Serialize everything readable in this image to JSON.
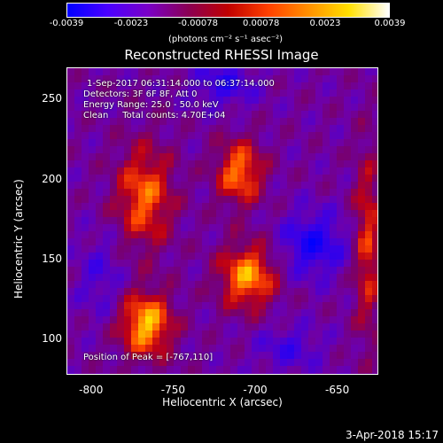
{
  "colorbar": {
    "ticks": [
      "-0.0039",
      "-0.0023",
      "-0.00078",
      "0.00078",
      "0.0023",
      "0.0039"
    ],
    "units": "(photons cm⁻² s⁻¹ asec⁻²)",
    "colors": [
      "#0000ff",
      "#4a00ff",
      "#7a00c8",
      "#8a0055",
      "#c00000",
      "#ff4000",
      "#ff9000",
      "#ffe000",
      "#ffffff"
    ]
  },
  "title": "Reconstructed RHESSI Image",
  "info": {
    "time": "1-Sep-2017 06:31:14.000 to 06:37:14.000",
    "detectors": "Detectors: 3F 6F 8F, Att 0",
    "energy": "Energy Range: 25.0 - 50.0 keV",
    "clean": "Clean     Total counts: 4.70E+04",
    "peak": "Position of Peak = [-767,110]"
  },
  "axes": {
    "xlabel": "Heliocentric X (arcsec)",
    "ylabel": "Heliocentric Y (arcsec)",
    "xticks": [
      "-800",
      "-750",
      "-700",
      "-650"
    ],
    "yticks": [
      "250",
      "200",
      "150",
      "100"
    ],
    "xlim": [
      -815,
      -625
    ],
    "ylim": [
      78,
      270
    ]
  },
  "image": {
    "sources": [
      {
        "x": -767,
        "y": 110,
        "amp": 1.0,
        "sx": 11,
        "sy": 14
      },
      {
        "x": -768,
        "y": 190,
        "amp": 0.75,
        "sx": 12,
        "sy": 22
      },
      {
        "x": -710,
        "y": 205,
        "amp": 0.8,
        "sx": 10,
        "sy": 14
      },
      {
        "x": -705,
        "y": 140,
        "amp": 0.9,
        "sx": 12,
        "sy": 14
      },
      {
        "x": -632,
        "y": 160,
        "amp": 0.6,
        "sx": 6,
        "sy": 40
      }
    ],
    "negative": [
      {
        "x": -665,
        "y": 160,
        "amp": -0.6,
        "sx": 14,
        "sy": 14
      },
      {
        "x": -720,
        "y": 260,
        "amp": -0.45,
        "sx": 14,
        "sy": 10
      },
      {
        "x": -680,
        "y": 95,
        "amp": -0.35,
        "sx": 14,
        "sy": 10
      },
      {
        "x": -795,
        "y": 140,
        "amp": -0.3,
        "sx": 10,
        "sy": 18
      }
    ]
  },
  "timestamp": "3-Apr-2018 15:17"
}
